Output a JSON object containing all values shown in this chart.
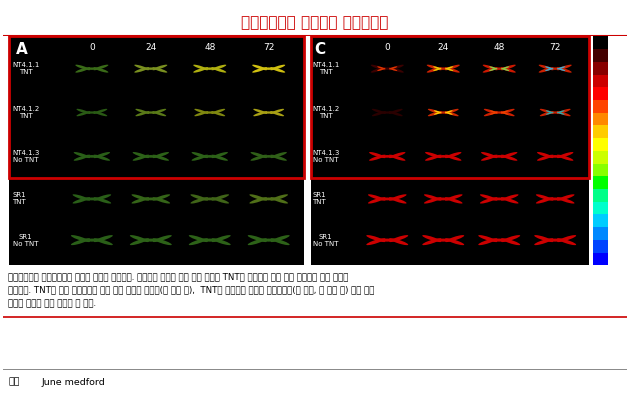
{
  "title": "바이오센서로 활용되는 합성생물학",
  "title_color": "#cc0000",
  "title_fontsize": 11,
  "panel_A_label": "A",
  "panel_C_label": "C",
  "time_labels": [
    "0",
    "24",
    "48",
    "72"
  ],
  "row_labels_top": [
    "NT4.1.1\nTNT",
    "NT4.1.2\nTNT",
    "NT4.1.3\nNo TNT"
  ],
  "row_labels_bot": [
    "SR1\nTNT",
    "SR1\nNo TNT"
  ],
  "colorbar_max": "0.82",
  "colorbar_min": "0.0",
  "description_line1": "합성생물학은 바이오센서를 만드는 데에도 이용된다. 유전자를 설계해 주요 폭약 물질인 TNT를 감지하면 잎의 색이 옅어지는 감시 식물을",
  "description_line2": "만들었다. TNT가 없는 환경에서는 잎의 색에 변화가 없지만(세 번째 줄),  TNT에 노출되는 시간에 길어질수록(첫 번째, 두 번째 줄) 잎의 색이",
  "description_line3": "노랗게 변하는 것을 확인할 수 있다.",
  "source_label": "자료",
  "source_text": "June medford",
  "red_border_color": "#cc0000",
  "fig_bg": "#ffffff",
  "panel_bg": "#000000",
  "colors_A": [
    [
      "#3a6b18",
      "#7a9020",
      "#b0b010",
      "#d0c010"
    ],
    [
      "#2a5b15",
      "#5a7a18",
      "#808810",
      "#a8a015"
    ],
    [
      "#2a5f18",
      "#2d6218",
      "#2d6218",
      "#306018"
    ],
    [
      "#2a5f18",
      "#356518",
      "#406518",
      "#507018"
    ],
    [
      "#2a5f18",
      "#2d6218",
      "#2d6218",
      "#2d6218"
    ]
  ],
  "colors_C_base": [
    [
      "#3a0000",
      "#cc2200",
      "#cc1800",
      "#cc2000"
    ],
    [
      "#2a0000",
      "#cc2800",
      "#cc2000",
      "#cc2000"
    ],
    [
      "#cc0000",
      "#cc0000",
      "#cc0000",
      "#cc0000"
    ],
    [
      "#cc0000",
      "#cc0000",
      "#cc0000",
      "#cc0000"
    ],
    [
      "#cc0000",
      "#cc0000",
      "#cc0000",
      "#cc0000"
    ]
  ],
  "colors_C_hot": [
    [
      "#dd3300",
      "#e8cc00",
      "#88cc44",
      "#44aacc"
    ],
    [
      null,
      "#ffcc00",
      "#ee4400",
      "#33aaaa"
    ],
    [
      null,
      null,
      null,
      null
    ],
    [
      null,
      null,
      null,
      null
    ],
    [
      null,
      null,
      null,
      null
    ]
  ]
}
